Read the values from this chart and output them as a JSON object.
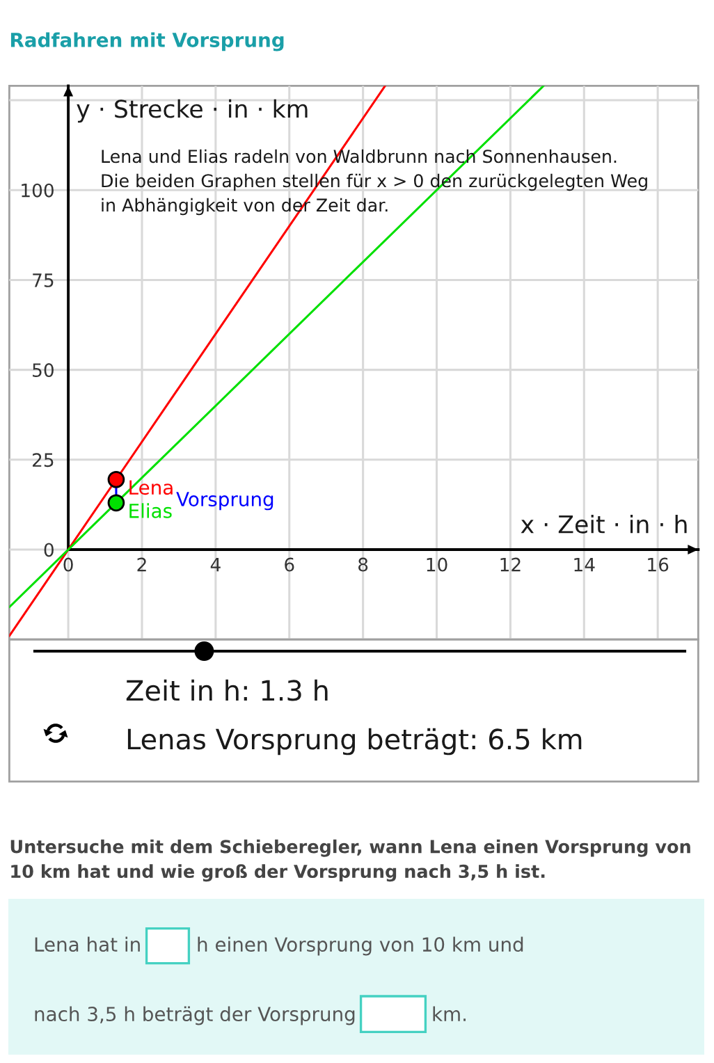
{
  "chart_data": {
    "type": "line",
    "title": "Radfahren mit Vorsprung",
    "xlabel": "x · Zeit · in · h",
    "ylabel": "y · Strecke · in · km",
    "xlim": [
      -1.6,
      17.1
    ],
    "ylim": [
      -25,
      129
    ],
    "xticks": [
      0,
      2,
      4,
      6,
      8,
      10,
      12,
      14,
      16
    ],
    "yticks": [
      0,
      25,
      50,
      75,
      100,
      {
        "value": 125,
        "label": null
      }
    ],
    "grid": true,
    "line_style": "solid",
    "series": [
      {
        "color": "#ff0000",
        "x": [
          -1.6,
          1.3,
          8.6
        ],
        "values": [
          -24,
          19.5,
          129
        ]
      },
      {
        "color": "#00e000",
        "x": [
          -1.6,
          1.3,
          12.9
        ],
        "values": [
          -16,
          13,
          129
        ]
      },
      {
        "name": "Vorsprung",
        "color": "#0000ff",
        "x": [
          1.3,
          1.3
        ],
        "values": [
          13,
          19.5
        ]
      },
      {
        "type": "scatter",
        "name": "Lena",
        "color": "#ff0000",
        "marker": "circle",
        "x": [
          1.3
        ],
        "values": [
          19.5
        ]
      },
      {
        "type": "scatter",
        "name": "Elias",
        "color": "#00e000",
        "marker": "circle",
        "x": [
          1.3
        ],
        "values": [
          13
        ]
      }
    ],
    "annotations": [
      "Lena und Elias radeln von Waldbrunn nach Sonnenhausen.\nDie beiden Graphen stellen für x > 0 den zurückgelegten Weg\nin Abhängigkeit von der Zeit dar.",
      "Zeit in h: 1.3 h",
      "Lenas Vorsprung beträgt: 6.5 km",
      "Untersuche mit dem Schieberegler, wann Lena einen Vorsprung von\n10 km hat und wie groß der Vorsprung nach 3,5 h ist.",
      "Lena hat in",
      "h einen Vorsprung von 10 km und",
      "nach 3,5 h beträgt der Vorsprung",
      "km."
    ]
  }
}
